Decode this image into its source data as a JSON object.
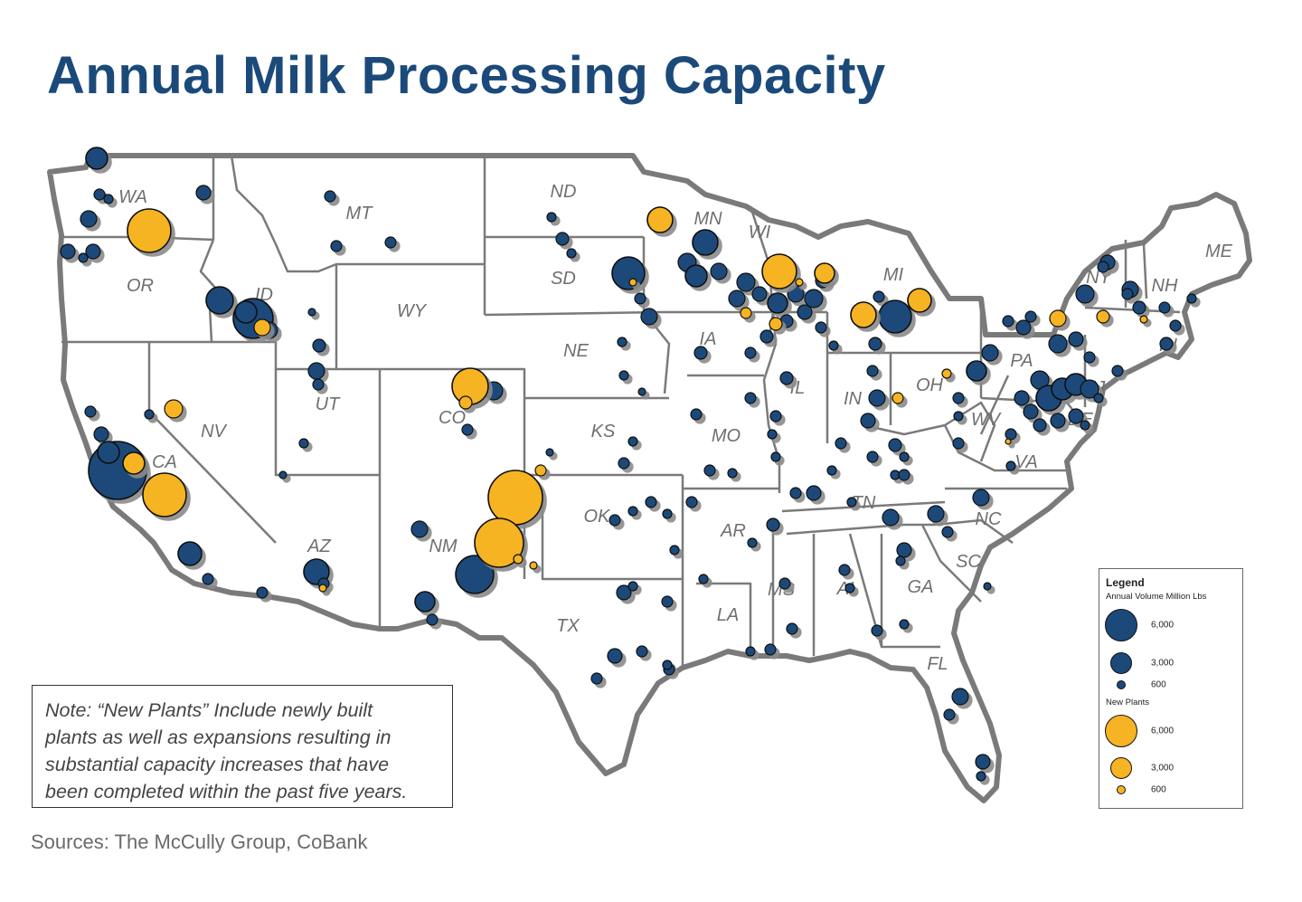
{
  "title": "Annual Milk Processing Capacity",
  "state_labels": [
    "WA",
    "MT",
    "ND",
    "MN",
    "WI",
    "MI",
    "ME",
    "OR",
    "ID",
    "SD",
    "NY",
    "NH",
    "WY",
    "NE",
    "IA",
    "PA",
    "OH",
    "IN",
    "IL",
    "UT",
    "NV",
    "CO",
    "RI",
    "NJ",
    "DE",
    "WV",
    "KS",
    "MO",
    "VA",
    "CA",
    "OK",
    "NC",
    "TN",
    "AR",
    "AZ",
    "NM",
    "SC",
    "MS",
    "AL",
    "GA",
    "LA",
    "TX",
    "FL"
  ],
  "note_lines": [
    "Note: “New Plants” Include newly built",
    "plants as well as expansions resulting in",
    "substantial capacity increases that have",
    "been completed within the past five years."
  ],
  "sources": "Sources: The McCully Group, CoBank",
  "legend": {
    "title": "Legend",
    "existing_heading": "Annual Volume Million Lbs",
    "new_heading": "New Plants",
    "existing_values": [
      "6,000",
      "3,000",
      "600"
    ],
    "new_values": [
      "6,000",
      "3,000",
      "600"
    ],
    "existing_color": "#1b4a7a",
    "new_color": "#f6b323"
  },
  "colors": {
    "title": "#1b4a7a",
    "existing_plant": "#1b4a7a",
    "new_plant": "#f6b323",
    "state_border": "#7a7a7a"
  }
}
